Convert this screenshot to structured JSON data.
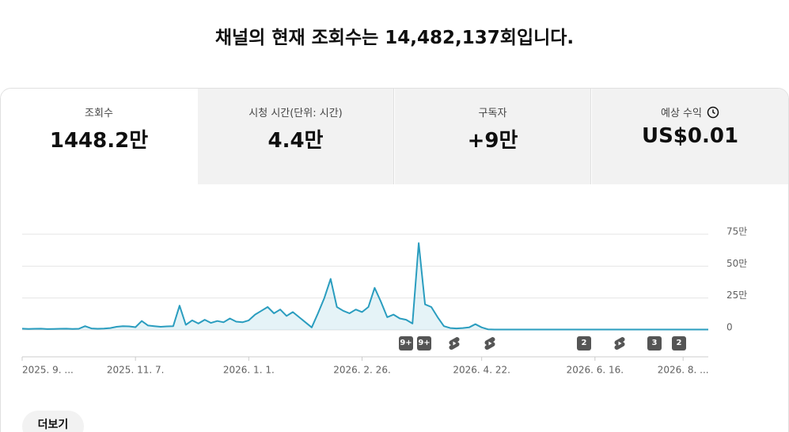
{
  "header": {
    "title": "채널의 현재 조회수는 14,482,137회입니다."
  },
  "tabs": [
    {
      "label": "조회수",
      "value": "1448.2만"
    },
    {
      "label": "시청 시간(단위: 시간)",
      "value": "4.4만"
    },
    {
      "label": "구독자",
      "value": "+9만"
    },
    {
      "label": "예상 수익",
      "value": "US$0.01"
    }
  ],
  "markers": [
    "9+",
    "9+",
    "2",
    "3",
    "2"
  ],
  "button": "더보기",
  "chart_data": {
    "type": "line",
    "color": "#2a9dbf",
    "grid": true,
    "ylim": [
      0,
      750000
    ],
    "yticks": [
      {
        "value": 0,
        "label": "0"
      },
      {
        "value": 250000,
        "label": "25만"
      },
      {
        "value": 500000,
        "label": "50만"
      },
      {
        "value": 750000,
        "label": "75만"
      }
    ],
    "categories": [
      "2025. 9. ...",
      null,
      null,
      null,
      null,
      null,
      null,
      null,
      null,
      null,
      null,
      null,
      null,
      null,
      null,
      null,
      null,
      null,
      "2025. 11. 7.",
      null,
      null,
      null,
      null,
      null,
      null,
      null,
      null,
      null,
      null,
      null,
      null,
      null,
      null,
      null,
      null,
      null,
      "2026. 1. 1.",
      null,
      null,
      null,
      null,
      null,
      null,
      null,
      null,
      null,
      null,
      null,
      null,
      null,
      null,
      null,
      null,
      null,
      "2026. 2. 26.",
      null,
      null,
      null,
      null,
      null,
      null,
      null,
      null,
      null,
      null,
      null,
      null,
      null,
      null,
      null,
      null,
      null,
      null,
      "2026. 4. 22.",
      null,
      null,
      null,
      null,
      null,
      null,
      null,
      null,
      null,
      null,
      null,
      null,
      null,
      null,
      null,
      null,
      null,
      "2026. 6. 16.",
      null,
      null,
      null,
      null,
      null,
      null,
      null,
      null,
      null,
      null,
      null,
      null,
      null,
      "2026. 8. ...",
      null,
      null,
      null,
      null
    ],
    "values": [
      10000,
      8000,
      9000,
      10000,
      7000,
      8000,
      9000,
      10000,
      8000,
      9000,
      30000,
      12000,
      9000,
      11000,
      15000,
      25000,
      30000,
      28000,
      22000,
      70000,
      35000,
      30000,
      25000,
      28000,
      30000,
      190000,
      40000,
      75000,
      50000,
      80000,
      55000,
      70000,
      60000,
      90000,
      65000,
      60000,
      75000,
      120000,
      150000,
      180000,
      130000,
      160000,
      110000,
      140000,
      100000,
      60000,
      20000,
      130000,
      250000,
      400000,
      180000,
      150000,
      130000,
      160000,
      140000,
      180000,
      330000,
      220000,
      100000,
      120000,
      90000,
      80000,
      50000,
      680000,
      200000,
      180000,
      100000,
      30000,
      15000,
      12000,
      15000,
      20000,
      45000,
      20000,
      5000,
      3000,
      3000,
      3000,
      3000,
      3000,
      3000,
      3000,
      3000,
      3000,
      3000,
      3000,
      3000,
      3000,
      3000,
      3000,
      3000,
      3000,
      3000,
      3000,
      3000,
      3000,
      3000,
      3000,
      3000,
      3000,
      3000,
      3000,
      3000,
      3000,
      3000,
      3000,
      3000,
      3000,
      3000,
      3000
    ]
  }
}
